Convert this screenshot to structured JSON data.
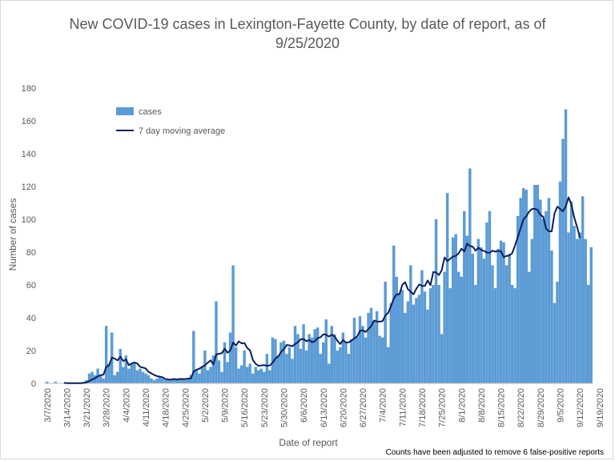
{
  "chart_data": {
    "type": "bar",
    "title": "New COVID-19 cases in Lexington-Fayette County, by date of report, as of 9/25/2020",
    "xlabel": "Date of report",
    "ylabel": "Number of cases",
    "ylim": [
      0,
      180
    ],
    "yticks": [
      0,
      20,
      40,
      60,
      80,
      100,
      120,
      140,
      160,
      180
    ],
    "xtick_labels": [
      "3/7/2020",
      "3/14/2020",
      "3/21/2020",
      "3/28/2020",
      "4/4/2020",
      "4/11/2020",
      "4/18/2020",
      "4/25/2020",
      "5/2/2020",
      "5/9/2020",
      "5/16/2020",
      "5/23/2020",
      "5/30/2020",
      "6/6/2020",
      "6/13/2020",
      "6/20/2020",
      "6/27/2020",
      "7/4/2020",
      "7/11/2020",
      "7/18/2020",
      "7/25/2020",
      "8/1/2020",
      "8/8/2020",
      "8/15/2020",
      "8/22/2020",
      "8/29/2020",
      "9/5/2020",
      "9/12/2020",
      "9/19/2020"
    ],
    "grid": false,
    "legend_position": "top-left",
    "note": "Counts have been adjusted to remove 6 false-positive reports",
    "colors": {
      "bars": "#5b9bd5",
      "line": "#0c1f5c"
    },
    "series": [
      {
        "name": "cases",
        "type": "bar",
        "values": [
          1,
          0,
          0,
          1,
          0,
          0,
          0,
          0,
          0,
          0,
          0,
          0,
          0,
          1,
          2,
          6,
          7,
          5,
          9,
          5,
          3,
          35,
          12,
          31,
          5,
          7,
          21,
          10,
          17,
          9,
          12,
          13,
          8,
          9,
          7,
          6,
          5,
          3,
          2,
          3,
          4,
          3,
          2,
          2,
          2,
          3,
          2,
          3,
          3,
          2,
          3,
          5,
          32,
          8,
          6,
          10,
          20,
          8,
          10,
          17,
          50,
          14,
          7,
          25,
          13,
          31,
          72,
          22,
          9,
          11,
          20,
          10,
          12,
          6,
          10,
          8,
          9,
          7,
          18,
          8,
          28,
          27,
          17,
          25,
          26,
          18,
          22,
          15,
          35,
          30,
          21,
          36,
          20,
          30,
          28,
          33,
          34,
          18,
          25,
          39,
          12,
          35,
          30,
          20,
          22,
          31,
          25,
          18,
          27,
          40,
          28,
          41,
          35,
          28,
          43,
          46,
          38,
          44,
          29,
          28,
          62,
          22,
          49,
          84,
          65,
          55,
          57,
          43,
          50,
          72,
          48,
          52,
          54,
          69,
          56,
          45,
          58,
          60,
          100,
          60,
          30,
          68,
          116,
          58,
          89,
          91,
          68,
          65,
          105,
          90,
          131,
          79,
          60,
          88,
          83,
          76,
          98,
          105,
          72,
          58,
          82,
          87,
          86,
          72,
          79,
          60,
          58,
          102,
          113,
          119,
          118,
          68,
          88,
          121,
          121,
          112,
          100,
          105,
          113,
          81,
          49,
          62,
          123,
          149,
          167,
          92,
          111,
          96,
          88,
          92,
          114,
          88,
          60,
          83
        ]
      },
      {
        "name": "7 day moving average",
        "type": "line",
        "values": [
          null,
          null,
          null,
          null,
          null,
          null,
          0.3,
          0.1,
          0.1,
          0.1,
          0.1,
          0.1,
          0.1,
          0.3,
          0.6,
          1.4,
          2.4,
          3.1,
          4.3,
          5.0,
          5.3,
          10.0,
          11.0,
          15.7,
          15.1,
          14.0,
          16.3,
          13.6,
          14.6,
          11.1,
          12.1,
          12.7,
          12.1,
          10.1,
          9.6,
          9.1,
          7.0,
          6.1,
          5.1,
          4.4,
          4.1,
          3.7,
          2.6,
          2.4,
          2.3,
          2.7,
          2.4,
          2.6,
          2.7,
          2.6,
          2.9,
          3.0,
          7.3,
          8.3,
          8.9,
          10.1,
          11.0,
          12.6,
          14.0,
          11.6,
          17.7,
          18.0,
          18.4,
          21.1,
          18.7,
          20.1,
          24.9,
          23.1,
          25.6,
          24.4,
          24.6,
          21.6,
          20.1,
          14.3,
          11.9,
          10.7,
          10.9,
          11.1,
          10.7,
          10.9,
          12.6,
          15.1,
          16.4,
          19.1,
          20.9,
          23.4,
          23.1,
          22.6,
          24.0,
          25.1,
          26.9,
          27.0,
          25.7,
          26.4,
          25.1,
          25.7,
          27.6,
          28.1,
          29.9,
          29.6,
          28.6,
          29.6,
          28.6,
          25.9,
          24.0,
          26.4,
          24.9,
          25.0,
          26.1,
          27.4,
          28.6,
          32.0,
          32.3,
          31.3,
          33.1,
          34.9,
          38.3,
          37.7,
          37.6,
          37.9,
          41.4,
          43.0,
          47.1,
          51.7,
          54.3,
          54.4,
          60.0,
          61.7,
          57.4,
          55.8,
          54.3,
          57.7,
          60.3,
          59.4,
          59.4,
          62.7,
          59.9,
          67.9,
          67.6,
          66.0,
          69.0,
          76.7,
          74.6,
          75.9,
          77.3,
          77.7,
          79.3,
          82.1,
          80.4,
          85.1,
          83.7,
          83.3,
          80.9,
          82.7,
          81.3,
          80.7,
          79.7,
          79.6,
          80.9,
          80.3,
          80.7,
          80.6,
          76.9,
          77.7,
          77.9,
          79.4,
          84.1,
          89.3,
          94.6,
          100.0,
          101.9,
          104.7,
          106.3,
          106.4,
          105.7,
          102.6,
          101.6,
          94.3,
          92.7,
          92.6,
          103.6,
          107.7,
          106.3,
          104.9,
          108.0,
          113.4,
          108.7,
          101.1,
          95.4,
          88.7
        ]
      }
    ]
  }
}
